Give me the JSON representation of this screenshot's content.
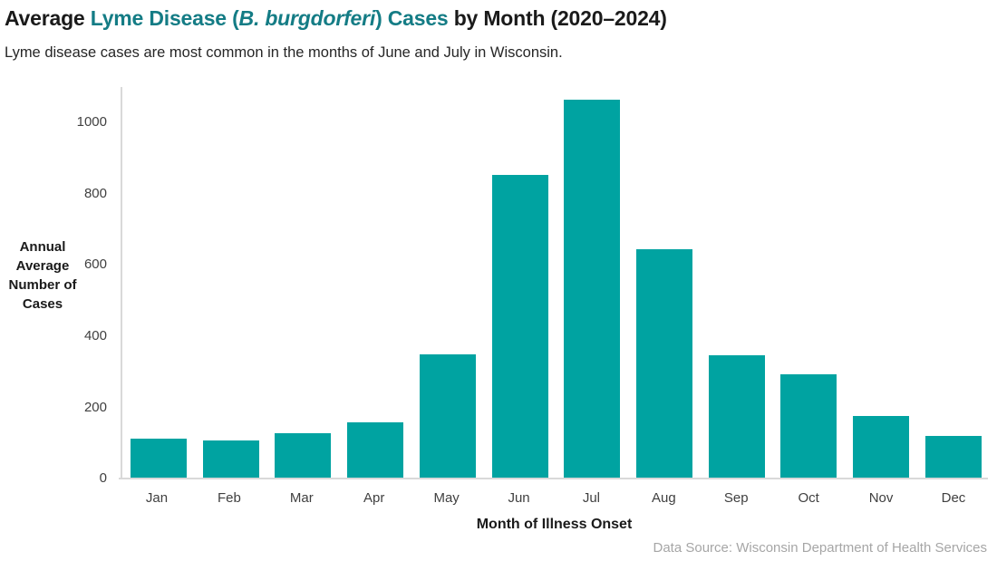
{
  "page": {
    "title_parts": {
      "prefix": "Average ",
      "accent_before_italic": "Lyme Disease (",
      "accent_italic": "B. burgdorferi",
      "accent_after_italic": ") Cases",
      "suffix": " by Month (2020–2024)"
    },
    "subtitle": "Lyme disease cases are most common in the months of June and July in Wisconsin.",
    "source_note": "Data Source: Wisconsin Department of Health Services"
  },
  "colors": {
    "bar": "#00a3a1",
    "title_accent": "#147c85",
    "title_text": "#1a1a1a",
    "subtitle_text": "#262626",
    "axis_line": "#d9d9d9",
    "tick_label": "#404040",
    "source_text": "#a6a6a6",
    "background": "#ffffff"
  },
  "chart_data": {
    "type": "bar",
    "title": "Average Lyme Disease (B. burgdorferi) Cases by Month (2020–2024)",
    "subtitle": "Lyme disease cases are most common in the months of June and July in Wisconsin.",
    "categories": [
      "Jan",
      "Feb",
      "Mar",
      "Apr",
      "May",
      "Jun",
      "Jul",
      "Aug",
      "Sep",
      "Oct",
      "Nov",
      "Dec"
    ],
    "values": [
      113,
      106,
      128,
      158,
      350,
      853,
      1064,
      644,
      346,
      292,
      175,
      120
    ],
    "xlabel": "Month of Illness Onset",
    "ylabel": "Annual Average Number of Cases",
    "ylabel_lines": [
      "Annual",
      "Average",
      "Number of",
      "Cases"
    ],
    "ylim": [
      0,
      1100
    ],
    "yticks": [
      0,
      200,
      400,
      600,
      800,
      1000
    ],
    "grid": false,
    "legend": false,
    "bar_color": "#00a3a1",
    "source": "Data Source: Wisconsin Department of Health Services"
  }
}
